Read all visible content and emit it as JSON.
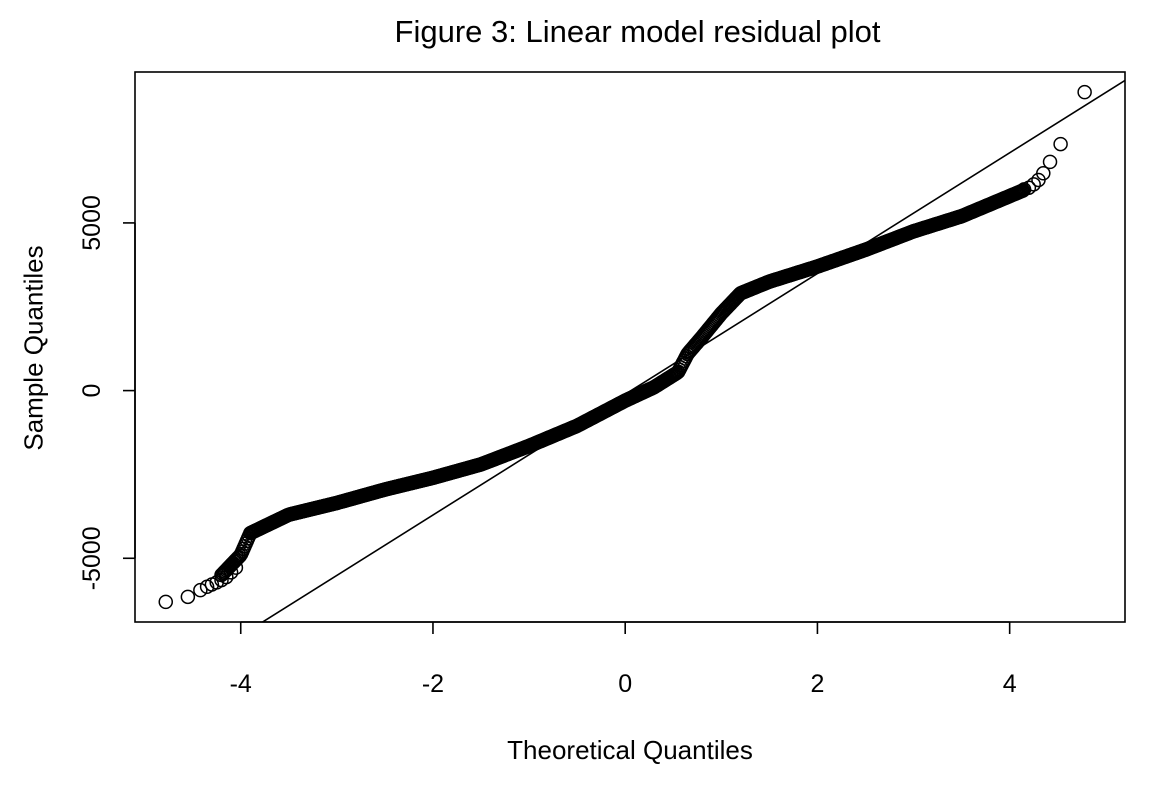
{
  "chart_data": {
    "type": "scatter",
    "title": "Figure 3: Linear model residual plot",
    "xlabel": "Theoretical Quantiles",
    "ylabel": "Sample Quantiles",
    "xlim": [
      -5.1,
      5.2
    ],
    "ylim": [
      -6900,
      9500
    ],
    "x_ticks": [
      -4,
      -2,
      0,
      2,
      4
    ],
    "x_tick_labels": [
      "-4",
      "-2",
      "0",
      "2",
      "4"
    ],
    "y_ticks": [
      -5000,
      0,
      5000
    ],
    "y_tick_labels": [
      "-5000",
      "0",
      "5000"
    ],
    "grid": false,
    "marker": "open-circle",
    "color": "#000000",
    "curve_knots": [
      [
        -4.2,
        -5500
      ],
      [
        -4.0,
        -4900
      ],
      [
        -3.9,
        -4250
      ],
      [
        -3.5,
        -3700
      ],
      [
        -3.0,
        -3350
      ],
      [
        -2.5,
        -2950
      ],
      [
        -2.0,
        -2600
      ],
      [
        -1.5,
        -2200
      ],
      [
        -1.0,
        -1650
      ],
      [
        -0.5,
        -1050
      ],
      [
        0.0,
        -300
      ],
      [
        0.3,
        100
      ],
      [
        0.55,
        550
      ],
      [
        0.65,
        1100
      ],
      [
        0.8,
        1600
      ],
      [
        1.0,
        2300
      ],
      [
        1.2,
        2900
      ],
      [
        1.5,
        3250
      ],
      [
        2.0,
        3700
      ],
      [
        2.5,
        4200
      ],
      [
        3.0,
        4750
      ],
      [
        3.5,
        5200
      ],
      [
        4.0,
        5800
      ],
      [
        4.15,
        5980
      ]
    ],
    "lower_tail_points": [
      [
        -4.78,
        -6300
      ],
      [
        -4.55,
        -6150
      ],
      [
        -4.42,
        -5950
      ],
      [
        -4.35,
        -5850
      ],
      [
        -4.3,
        -5780
      ],
      [
        -4.25,
        -5720
      ],
      [
        -4.2,
        -5650
      ],
      [
        -4.15,
        -5560
      ],
      [
        -4.1,
        -5420
      ],
      [
        -4.05,
        -5280
      ]
    ],
    "upper_tail_points": [
      [
        4.15,
        6000
      ],
      [
        4.2,
        6050
      ],
      [
        4.25,
        6150
      ],
      [
        4.3,
        6280
      ],
      [
        4.35,
        6480
      ],
      [
        4.42,
        6820
      ],
      [
        4.53,
        7350
      ],
      [
        4.78,
        8900
      ]
    ],
    "reference_line": {
      "x1": -3.8,
      "y1": -6950,
      "x2": 5.2,
      "y2": 9250
    }
  }
}
